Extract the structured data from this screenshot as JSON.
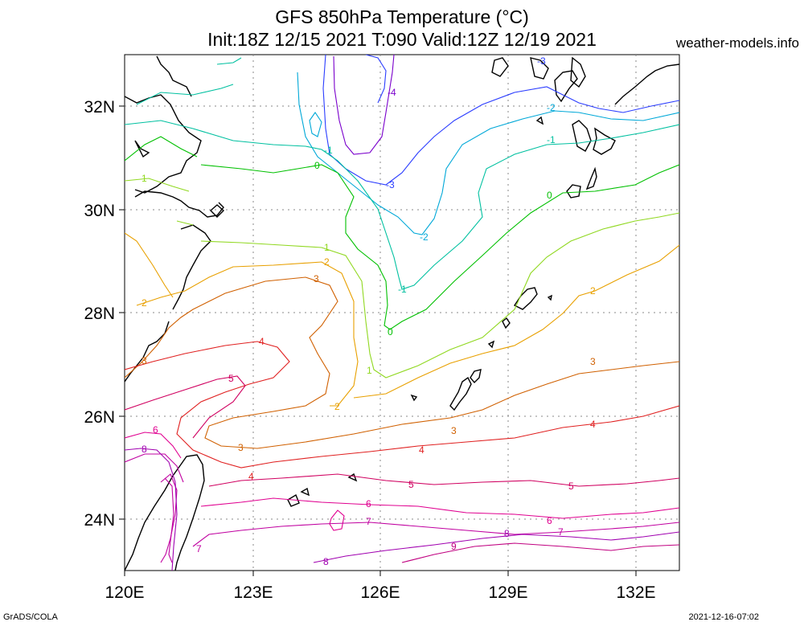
{
  "title": {
    "line1": "GFS 850hPa Temperature (°C)",
    "line2": "Init:18Z 12/15 2021 T:090 Valid:12Z 12/19 2021"
  },
  "site": "weather-models.info",
  "footer": {
    "left": "GrADS/COLA",
    "right": "2021-12-16-07:02"
  },
  "axes": {
    "lat_labels": [
      "32N",
      "30N",
      "28N",
      "26N",
      "24N"
    ],
    "lon_labels": [
      "120E",
      "123E",
      "126E",
      "129E",
      "132E"
    ]
  },
  "colors": {
    "-4": "#7a00cc",
    "-3": "#2a3cff",
    "-2": "#00a8d8",
    "-1": "#00c0a0",
    "0": "#00c000",
    "1": "#90d820",
    "2": "#e8a000",
    "3": "#d06000",
    "4": "#e02020",
    "5": "#d00060",
    "6": "#e00090",
    "7": "#c000a0",
    "8": "#a000b0",
    "9": "#c00080",
    "coast": "#000000",
    "grid": "#888888"
  },
  "contour_labels": [
    {
      "t": "-4"
    },
    {
      "t": "-3"
    },
    {
      "t": "-3"
    },
    {
      "t": "-2"
    },
    {
      "t": "-2"
    },
    {
      "t": "-1"
    },
    {
      "t": "-1"
    },
    {
      "t": "-1"
    },
    {
      "t": "0"
    },
    {
      "t": "0"
    },
    {
      "t": "0"
    },
    {
      "t": "1"
    },
    {
      "t": "1"
    },
    {
      "t": "1"
    },
    {
      "t": "2"
    },
    {
      "t": "2"
    },
    {
      "t": "2"
    },
    {
      "t": "2"
    },
    {
      "t": "3"
    },
    {
      "t": "3"
    },
    {
      "t": "3"
    },
    {
      "t": "3"
    },
    {
      "t": "3"
    },
    {
      "t": "4"
    },
    {
      "t": "4"
    },
    {
      "t": "4"
    },
    {
      "t": "4"
    },
    {
      "t": "5"
    },
    {
      "t": "5"
    },
    {
      "t": "5"
    },
    {
      "t": "6"
    },
    {
      "t": "6"
    },
    {
      "t": "6"
    },
    {
      "t": "7"
    },
    {
      "t": "7"
    },
    {
      "t": "7"
    },
    {
      "t": "8"
    },
    {
      "t": "8"
    },
    {
      "t": "8"
    },
    {
      "t": "9"
    }
  ]
}
